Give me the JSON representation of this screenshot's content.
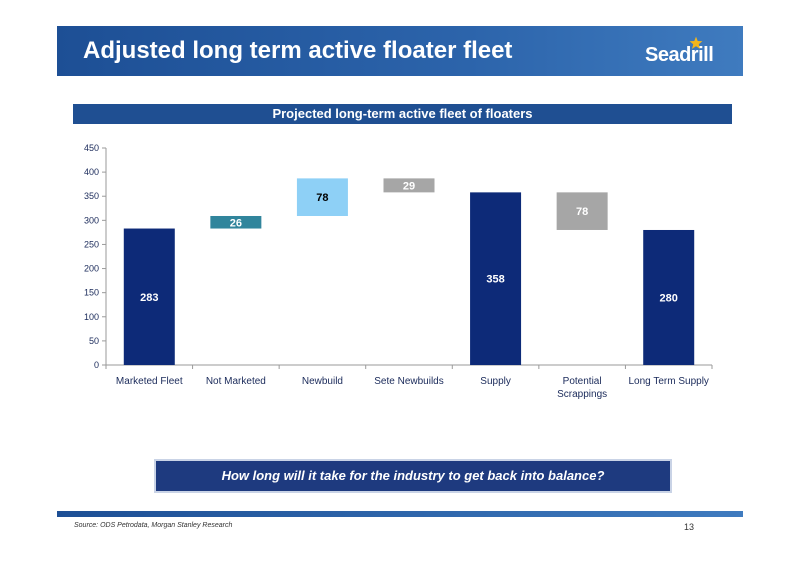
{
  "header": {
    "title": "Adjusted long term active floater fleet"
  },
  "logo": {
    "text": "Seadrill",
    "icon": "star-icon",
    "star_color": "#f2b51c"
  },
  "chart_title": "Projected long-term active fleet of floaters",
  "chart_data": {
    "type": "bar",
    "subtype": "waterfall",
    "title": "Projected long-term active fleet of floaters",
    "categories": [
      "Marketed Fleet",
      "Not Marketed",
      "Newbuild",
      "Sete Newbuilds",
      "Supply",
      "Potential Scrappings",
      "Long Term Supply"
    ],
    "values": [
      283,
      26,
      78,
      29,
      358,
      78,
      280
    ],
    "bases": [
      0,
      283,
      309,
      358,
      0,
      280,
      0
    ],
    "data_labels": [
      "283",
      "26",
      "78",
      "29",
      "358",
      "78",
      "280"
    ],
    "colors": [
      "#0d2a78",
      "#31859c",
      "#8ed0f6",
      "#a6a6a6",
      "#0d2a78",
      "#a6a6a6",
      "#0d2a78"
    ],
    "label_colors": [
      "#ffffff",
      "#ffffff",
      "#000000",
      "#ffffff",
      "#ffffff",
      "#ffffff",
      "#ffffff"
    ],
    "ylim": [
      0,
      450
    ],
    "yticks": [
      0,
      50,
      100,
      150,
      200,
      250,
      300,
      350,
      400,
      450
    ],
    "xlabel": "",
    "ylabel": "",
    "grid": false,
    "legend": "none"
  },
  "callout": "How long will it take for the industry to get back into balance?",
  "footer": {
    "source": "Source: ODS Petrodata, Morgan Stanley Research",
    "page": "13"
  }
}
